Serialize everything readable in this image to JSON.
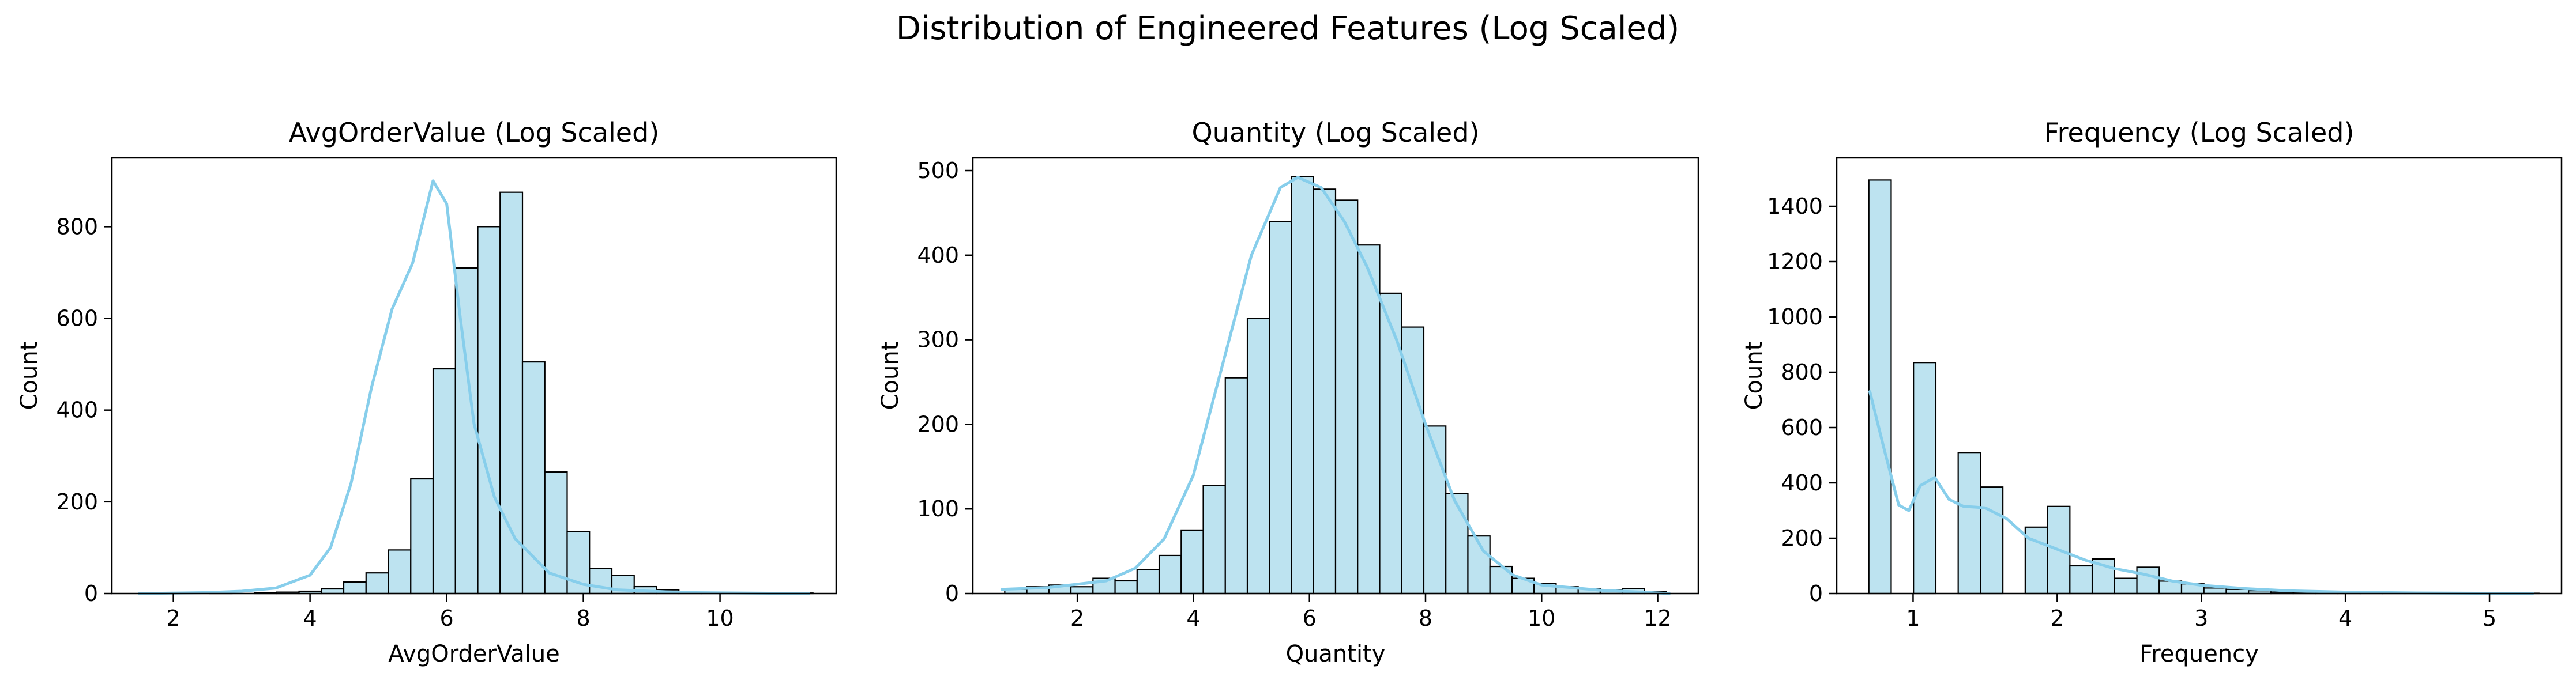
{
  "figure": {
    "title": "Distribution of Engineered Features (Log Scaled)"
  },
  "colors": {
    "bar_fill": "#bde3f0",
    "bar_edge": "#000000",
    "kde_line": "#87ceeb"
  },
  "chart_data": [
    {
      "type": "bar",
      "title": "AvgOrderValue (Log Scaled)",
      "xlabel": "AvgOrderValue",
      "ylabel": "Count",
      "xlim": [
        1.1,
        11.7
      ],
      "ylim": [
        0,
        950
      ],
      "xticks": [
        2,
        4,
        6,
        8,
        10
      ],
      "yticks": [
        0,
        200,
        400,
        600,
        800
      ],
      "bin_start": 1.55,
      "bin_width": 0.327,
      "counts": [
        1,
        0,
        0,
        1,
        0,
        2,
        3,
        5,
        10,
        25,
        45,
        95,
        250,
        490,
        710,
        800,
        875,
        505,
        265,
        135,
        55,
        40,
        15,
        8,
        3,
        1,
        1,
        0,
        1,
        1
      ],
      "kde": {
        "x": [
          1.5,
          2.5,
          3.0,
          3.5,
          4.0,
          4.3,
          4.6,
          4.9,
          5.2,
          5.5,
          5.8,
          6.0,
          6.2,
          6.4,
          6.7,
          7.0,
          7.5,
          8.0,
          8.5,
          9.5,
          11.3
        ],
        "y": [
          0,
          2,
          5,
          12,
          40,
          100,
          240,
          450,
          620,
          720,
          900,
          850,
          600,
          370,
          210,
          120,
          45,
          20,
          8,
          2,
          0
        ]
      }
    },
    {
      "type": "bar",
      "title": "Quantity (Log Scaled)",
      "xlabel": "Quantity",
      "ylabel": "Count",
      "xlim": [
        0.2,
        12.7
      ],
      "ylim": [
        0,
        515
      ],
      "xticks": [
        2,
        4,
        6,
        8,
        10,
        12
      ],
      "yticks": [
        0,
        100,
        200,
        300,
        400,
        500
      ],
      "bin_start": 0.75,
      "bin_width": 0.38,
      "counts": [
        5,
        8,
        10,
        8,
        18,
        15,
        28,
        45,
        75,
        128,
        255,
        325,
        440,
        493,
        478,
        465,
        412,
        355,
        315,
        198,
        118,
        68,
        32,
        18,
        12,
        8,
        6,
        4,
        6,
        2
      ],
      "kde": {
        "x": [
          0.7,
          1.5,
          2.5,
          3.0,
          3.5,
          4.0,
          4.5,
          5.0,
          5.5,
          5.8,
          6.2,
          6.6,
          7.0,
          7.5,
          8.0,
          8.5,
          9.0,
          9.5,
          10.0,
          11.0,
          12.2
        ],
        "y": [
          5,
          7,
          15,
          30,
          65,
          140,
          270,
          400,
          480,
          492,
          480,
          440,
          385,
          300,
          200,
          110,
          50,
          22,
          10,
          4,
          0
        ]
      }
    },
    {
      "type": "bar",
      "title": "Frequency (Log Scaled)",
      "xlabel": "Frequency",
      "ylabel": "Count",
      "xlim": [
        0.47,
        5.5
      ],
      "ylim": [
        0,
        1575
      ],
      "xticks": [
        1,
        2,
        3,
        4,
        5
      ],
      "yticks": [
        0,
        200,
        400,
        600,
        800,
        1000,
        1200,
        1400
      ],
      "bin_start": 0.693,
      "bin_width": 0.155,
      "counts": [
        1495,
        0,
        835,
        0,
        510,
        385,
        0,
        240,
        315,
        100,
        125,
        55,
        95,
        45,
        35,
        20,
        15,
        10,
        5,
        5,
        3,
        2,
        2,
        1,
        1,
        1,
        1,
        0,
        0,
        1
      ],
      "kde": {
        "x": [
          0.7,
          0.8,
          0.9,
          0.97,
          1.05,
          1.15,
          1.25,
          1.35,
          1.5,
          1.65,
          1.8,
          2.0,
          2.2,
          2.4,
          2.6,
          2.8,
          3.0,
          3.3,
          3.6,
          4.0,
          4.5,
          5.3
        ],
        "y": [
          730,
          520,
          320,
          300,
          390,
          420,
          340,
          315,
          310,
          270,
          200,
          160,
          120,
          90,
          70,
          45,
          30,
          18,
          10,
          5,
          2,
          0
        ]
      }
    }
  ]
}
